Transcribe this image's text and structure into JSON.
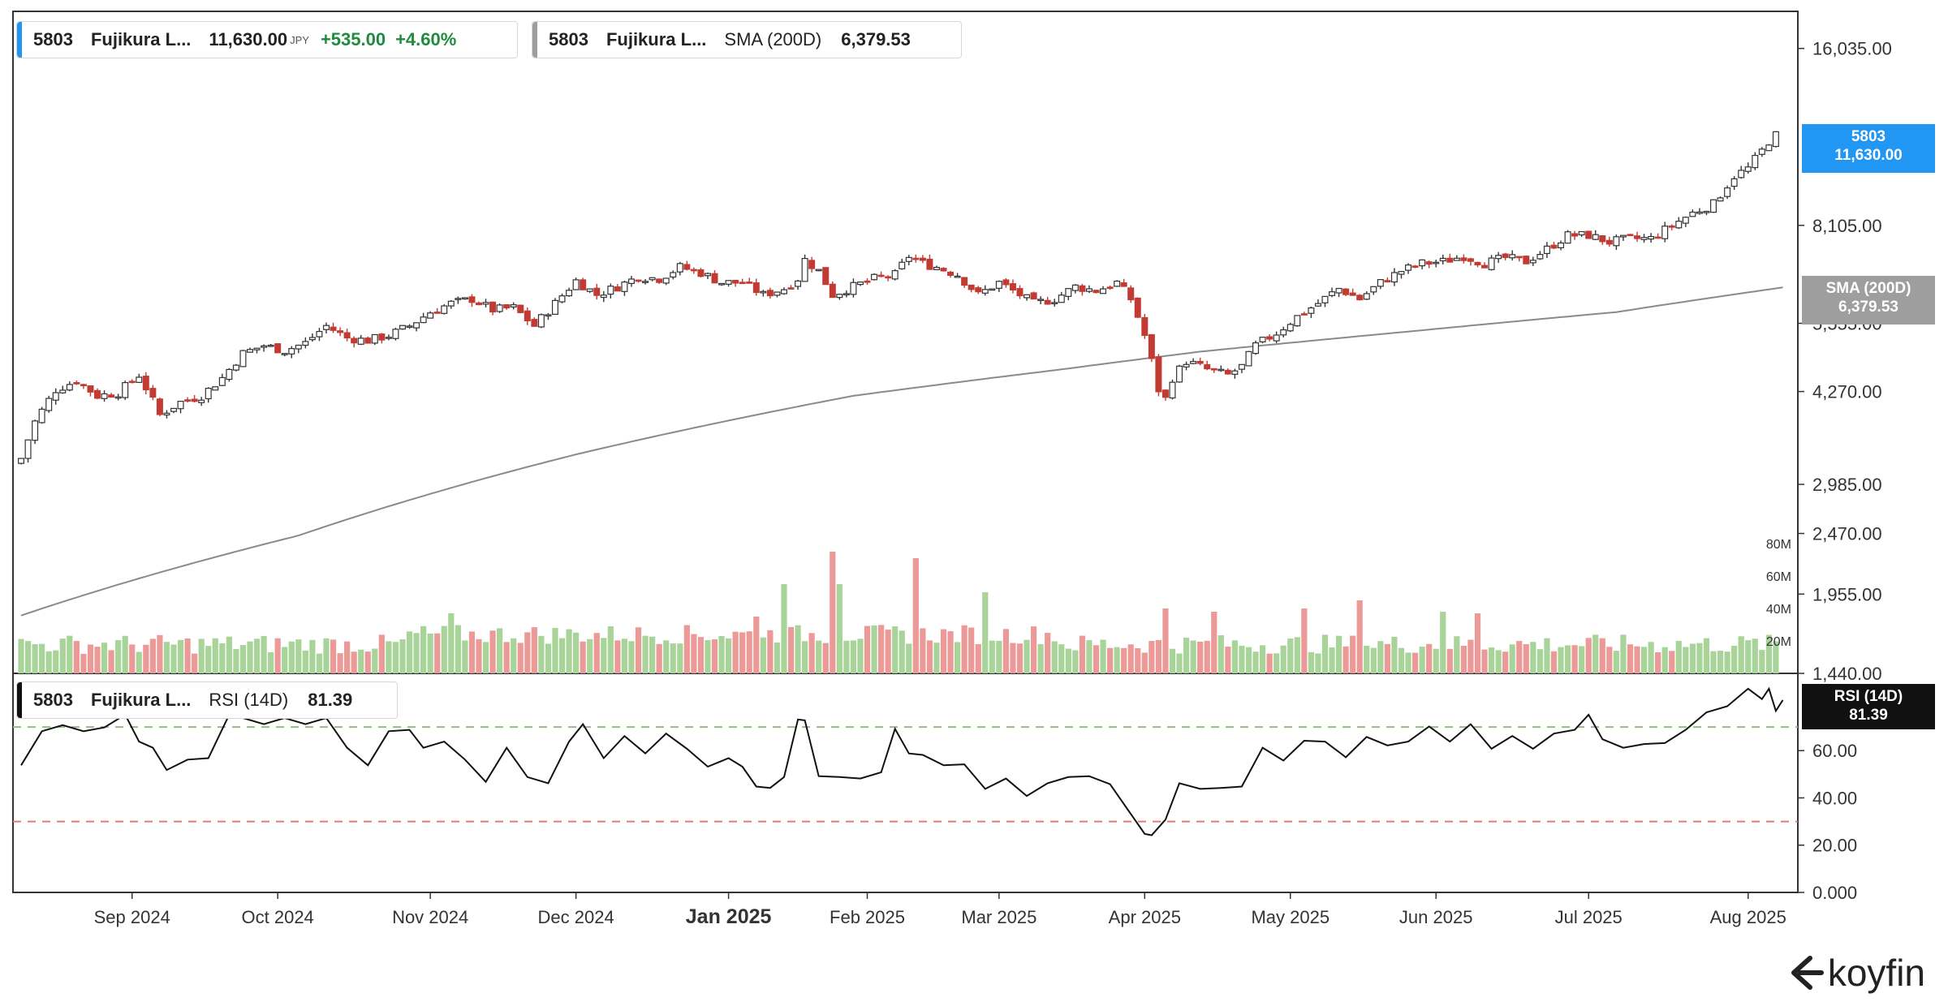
{
  "legends": {
    "price": {
      "ticker": "5803",
      "name": "Fujikura L...",
      "price": "11,630.00",
      "unit": "JPY",
      "change": "+535.00",
      "change_pct": "+4.60%",
      "color": "#2196f3"
    },
    "sma": {
      "ticker": "5803",
      "name": "Fujikura L...",
      "indicator": "SMA (200D)",
      "value": "6,379.53",
      "color": "#9e9e9e"
    },
    "rsi": {
      "ticker": "5803",
      "name": "Fujikura L...",
      "indicator": "RSI (14D)",
      "value": "81.39",
      "color": "#111111"
    }
  },
  "tags": {
    "price": {
      "line1": "5803",
      "line2": "11,630.00",
      "color": "#2196f3"
    },
    "sma": {
      "line1": "SMA (200D)",
      "line2": "6,379.53",
      "color": "#9e9e9e"
    },
    "rsi": {
      "line1": "RSI (14D)",
      "line2": "81.39",
      "color": "#111111"
    }
  },
  "logo": {
    "text": "koyfin"
  },
  "chart_data": [
    {
      "type": "candlestick",
      "scale": "log",
      "ylim": [
        1440,
        18500
      ],
      "y_ticks": [
        "16,035.00",
        "8,105.00",
        "5,555.00",
        "4,270.00",
        "2,985.00",
        "2,470.00",
        "1,955.00",
        "1,440.00"
      ],
      "y_tick_values": [
        16035,
        8105,
        5555,
        4270,
        2985,
        2470,
        1955,
        1440
      ],
      "x_ticks": [
        "Sep 2024",
        "Oct 2024",
        "Nov 2024",
        "Dec 2024",
        "Jan 2025",
        "Feb 2025",
        "Mar 2025",
        "Apr 2025",
        "May 2025",
        "Jun 2025",
        "Jul 2025",
        "Aug 2025"
      ],
      "x_tick_index": [
        16,
        37,
        59,
        80,
        102,
        122,
        141,
        162,
        183,
        204,
        226,
        249
      ],
      "last_price": 11630.0,
      "close_trend": [
        [
          0,
          3300
        ],
        [
          2,
          3800
        ],
        [
          5,
          4300
        ],
        [
          8,
          4450
        ],
        [
          11,
          4200
        ],
        [
          14,
          4250
        ],
        [
          17,
          4550
        ],
        [
          20,
          3900
        ],
        [
          23,
          4100
        ],
        [
          26,
          4200
        ],
        [
          29,
          4500
        ],
        [
          32,
          4950
        ],
        [
          35,
          5100
        ],
        [
          38,
          5000
        ],
        [
          41,
          5150
        ],
        [
          44,
          5500
        ],
        [
          47,
          5250
        ],
        [
          50,
          5200
        ],
        [
          53,
          5300
        ],
        [
          56,
          5500
        ],
        [
          59,
          5800
        ],
        [
          62,
          6000
        ],
        [
          65,
          6100
        ],
        [
          68,
          5850
        ],
        [
          71,
          5900
        ],
        [
          74,
          5500
        ],
        [
          77,
          6000
        ],
        [
          80,
          6550
        ],
        [
          83,
          6200
        ],
        [
          86,
          6400
        ],
        [
          89,
          6650
        ],
        [
          92,
          6600
        ],
        [
          95,
          6900
        ],
        [
          98,
          6750
        ],
        [
          101,
          6500
        ],
        [
          104,
          6500
        ],
        [
          107,
          6200
        ],
        [
          110,
          6350
        ],
        [
          112,
          6600
        ],
        [
          113,
          7100
        ],
        [
          115,
          6800
        ],
        [
          117,
          6200
        ],
        [
          120,
          6400
        ],
        [
          123,
          6600
        ],
        [
          126,
          6700
        ],
        [
          128,
          7200
        ],
        [
          130,
          7000
        ],
        [
          132,
          6900
        ],
        [
          135,
          6700
        ],
        [
          138,
          6200
        ],
        [
          141,
          6500
        ],
        [
          144,
          6200
        ],
        [
          146,
          6000
        ],
        [
          149,
          6100
        ],
        [
          152,
          6400
        ],
        [
          155,
          6300
        ],
        [
          158,
          6500
        ],
        [
          160,
          6100
        ],
        [
          162,
          5300
        ],
        [
          164,
          4300
        ],
        [
          165,
          4150
        ],
        [
          166,
          4500
        ],
        [
          168,
          4800
        ],
        [
          171,
          4650
        ],
        [
          174,
          4550
        ],
        [
          176,
          4700
        ],
        [
          178,
          5100
        ],
        [
          181,
          5350
        ],
        [
          184,
          5700
        ],
        [
          187,
          6000
        ],
        [
          190,
          6350
        ],
        [
          193,
          6100
        ],
        [
          196,
          6500
        ],
        [
          199,
          6800
        ],
        [
          202,
          7000
        ],
        [
          205,
          7050
        ],
        [
          208,
          7200
        ],
        [
          211,
          7000
        ],
        [
          214,
          7150
        ],
        [
          217,
          7050
        ],
        [
          220,
          7400
        ],
        [
          223,
          7800
        ],
        [
          226,
          7800
        ],
        [
          229,
          7600
        ],
        [
          232,
          7700
        ],
        [
          235,
          7700
        ],
        [
          238,
          8100
        ],
        [
          241,
          8500
        ],
        [
          244,
          8800
        ],
        [
          247,
          9800
        ],
        [
          249,
          10100
        ],
        [
          251,
          10800
        ],
        [
          253,
          11630
        ]
      ],
      "sma_200d_trend": [
        [
          0,
          1800
        ],
        [
          40,
          2450
        ],
        [
          80,
          3350
        ],
        [
          120,
          4200
        ],
        [
          150,
          4650
        ],
        [
          170,
          4980
        ],
        [
          200,
          5380
        ],
        [
          230,
          5800
        ],
        [
          254,
          6379.53
        ]
      ]
    },
    {
      "type": "bar",
      "name": "Volume",
      "y_ticks": [
        "80M",
        "60M",
        "40M",
        "20M"
      ],
      "y_tick_values": [
        80,
        60,
        40,
        20
      ],
      "ylim": [
        0,
        90
      ],
      "unit": "M",
      "spikes": [
        [
          62,
          37
        ],
        [
          106,
          35
        ],
        [
          110,
          55
        ],
        [
          117,
          75
        ],
        [
          118,
          55
        ],
        [
          129,
          71
        ],
        [
          139,
          50
        ],
        [
          165,
          40
        ],
        [
          172,
          38
        ],
        [
          185,
          40
        ],
        [
          193,
          45
        ],
        [
          205,
          38
        ],
        [
          210,
          37
        ]
      ]
    },
    {
      "type": "line",
      "name": "RSI (14D)",
      "y_ticks": [
        "60.00",
        "40.00",
        "20.00",
        "0.000"
      ],
      "y_tick_values": [
        60,
        40,
        20,
        0
      ],
      "ylim": [
        0,
        92
      ],
      "overbought": 70,
      "oversold": 30,
      "last_value": 81.39,
      "points": [
        [
          0,
          55
        ],
        [
          3,
          67
        ],
        [
          6,
          72
        ],
        [
          9,
          67
        ],
        [
          12,
          71
        ],
        [
          15,
          74
        ],
        [
          17,
          65
        ],
        [
          19,
          60
        ],
        [
          21,
          53
        ],
        [
          24,
          55
        ],
        [
          27,
          58
        ],
        [
          30,
          74
        ],
        [
          32,
          75
        ],
        [
          35,
          70
        ],
        [
          38,
          75
        ],
        [
          41,
          70
        ],
        [
          44,
          75
        ],
        [
          47,
          60
        ],
        [
          50,
          55
        ],
        [
          53,
          67
        ],
        [
          56,
          70
        ],
        [
          58,
          60
        ],
        [
          61,
          65
        ],
        [
          64,
          55
        ],
        [
          67,
          48
        ],
        [
          70,
          60
        ],
        [
          73,
          50
        ],
        [
          76,
          45
        ],
        [
          79,
          65
        ],
        [
          81,
          70
        ],
        [
          84,
          58
        ],
        [
          87,
          65
        ],
        [
          90,
          60
        ],
        [
          93,
          66
        ],
        [
          96,
          62
        ],
        [
          99,
          52
        ],
        [
          102,
          58
        ],
        [
          104,
          52
        ],
        [
          106,
          46
        ],
        [
          108,
          43
        ],
        [
          110,
          50
        ],
        [
          112,
          72
        ],
        [
          113,
          74
        ],
        [
          115,
          48
        ],
        [
          118,
          50
        ],
        [
          121,
          47
        ],
        [
          124,
          52
        ],
        [
          126,
          68
        ],
        [
          128,
          60
        ],
        [
          130,
          57
        ],
        [
          133,
          55
        ],
        [
          136,
          53
        ],
        [
          139,
          45
        ],
        [
          142,
          47
        ],
        [
          145,
          42
        ],
        [
          148,
          45
        ],
        [
          151,
          50
        ],
        [
          154,
          48
        ],
        [
          157,
          47
        ],
        [
          160,
          32
        ],
        [
          162,
          26
        ],
        [
          163,
          23
        ],
        [
          165,
          32
        ],
        [
          167,
          45
        ],
        [
          170,
          45
        ],
        [
          173,
          43
        ],
        [
          176,
          46
        ],
        [
          179,
          60
        ],
        [
          182,
          57
        ],
        [
          185,
          63
        ],
        [
          188,
          65
        ],
        [
          191,
          56
        ],
        [
          194,
          67
        ],
        [
          197,
          61
        ],
        [
          200,
          65
        ],
        [
          203,
          69
        ],
        [
          206,
          65
        ],
        [
          209,
          70
        ],
        [
          212,
          62
        ],
        [
          215,
          65
        ],
        [
          218,
          62
        ],
        [
          221,
          66
        ],
        [
          224,
          70
        ],
        [
          226,
          74
        ],
        [
          228,
          66
        ],
        [
          231,
          60
        ],
        [
          234,
          64
        ],
        [
          237,
          62
        ],
        [
          240,
          70
        ],
        [
          243,
          75
        ],
        [
          246,
          80
        ],
        [
          249,
          85
        ],
        [
          251,
          83
        ],
        [
          252,
          85
        ],
        [
          253,
          78
        ],
        [
          254,
          81.39
        ]
      ]
    }
  ]
}
